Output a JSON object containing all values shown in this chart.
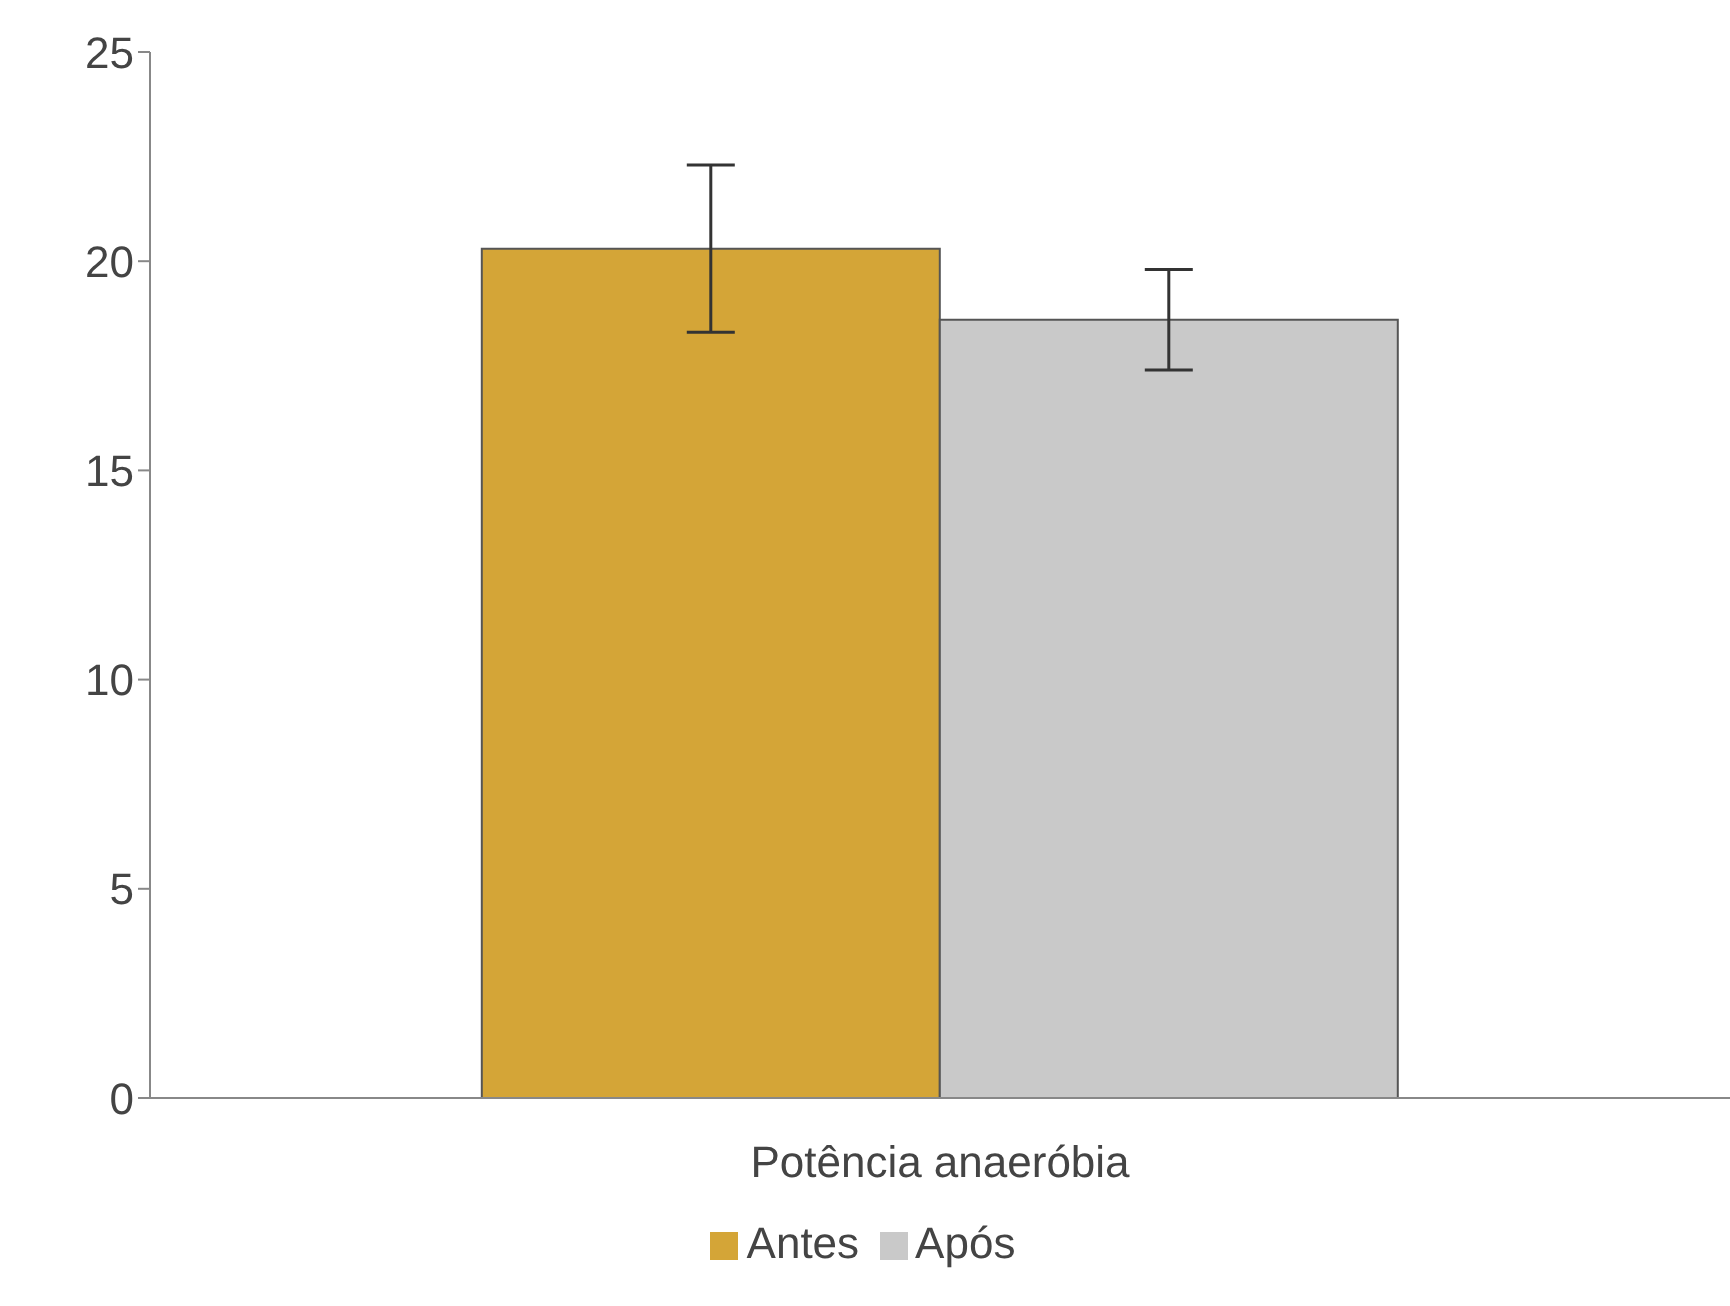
{
  "chart_data": {
    "type": "bar",
    "categories": [
      "Potência anaeróbia"
    ],
    "series": [
      {
        "name": "Antes",
        "color": "#d4a537",
        "values": [
          20.3
        ],
        "errors": [
          2.0
        ]
      },
      {
        "name": "Após",
        "color": "#c9c9c9",
        "values": [
          18.6
        ],
        "errors": [
          1.2
        ]
      }
    ],
    "ylim": [
      0,
      25
    ],
    "yticks": [
      0,
      5,
      10,
      15,
      20,
      25
    ],
    "grid": false,
    "legend": "bottom"
  }
}
